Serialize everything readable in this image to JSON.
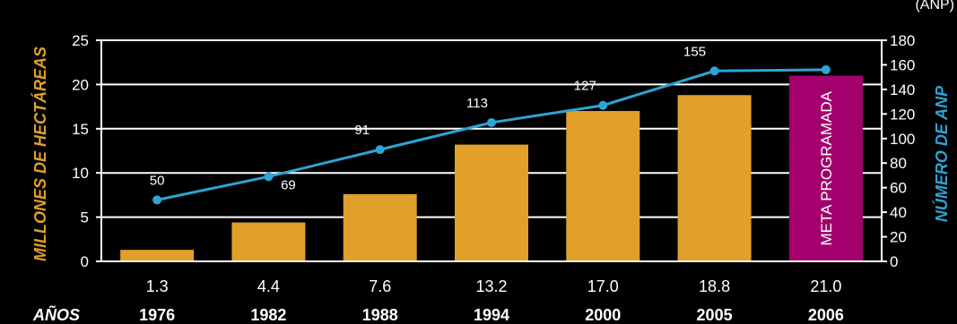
{
  "chart_data": {
    "type": "bar",
    "categories": [
      "1976",
      "1982",
      "1988",
      "1994",
      "2000",
      "2005",
      "2006"
    ],
    "series": [
      {
        "values": [
          1.3,
          4.4,
          7.6,
          13.2,
          17.0,
          18.8,
          21.0
        ]
      },
      {
        "values": [
          50,
          69,
          91,
          113,
          127,
          155,
          156
        ]
      }
    ],
    "value_labels": [
      "1.3",
      "4.4",
      "7.6",
      "13.2",
      "17.0",
      "18.8",
      "21.0"
    ],
    "count_labels": [
      "50",
      "69",
      "91",
      "113",
      "127",
      "155",
      ""
    ],
    "highlight_label": "META PROGRAMADA",
    "xlabel": "AÑOS",
    "ylabel": "MILLONES DE HECTÁREAS",
    "y2label": "NÚMERO DE ANP",
    "corner_text": "(ANP)",
    "ylim": [
      0,
      25
    ],
    "y2lim": [
      0,
      180
    ],
    "yticks": [
      0,
      5,
      10,
      15,
      20,
      25
    ],
    "y2ticks": [
      0,
      20,
      40,
      60,
      80,
      100,
      120,
      140,
      160,
      180
    ],
    "grid": true,
    "colors": {
      "bar": "#E1A02A",
      "highlight_bar": "#A3006E",
      "line": "#2EA4D4",
      "left_axis_title": "#E1A02A",
      "right_axis_title": "#2EA4D4",
      "text": "#FFFFFF",
      "background": "#000000"
    }
  }
}
